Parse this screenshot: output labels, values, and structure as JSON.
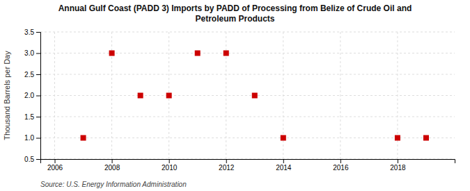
{
  "chart_data": {
    "type": "scatter",
    "title": "Annual Gulf Coast (PADD 3) Imports by PADD of Processing from Belize of Crude Oil and\nPetroleum Products",
    "y_label": "Thousand Barrels per Day",
    "source": "Source: U.S. Energy Information Administration",
    "x": [
      2007,
      2008,
      2009,
      2010,
      2011,
      2012,
      2013,
      2014,
      2018,
      2019
    ],
    "values": [
      1.0,
      3.0,
      2.0,
      2.0,
      3.0,
      3.0,
      2.0,
      1.0,
      1.0,
      1.0
    ],
    "color": "#cc0000",
    "marker": "square",
    "xlim": [
      2005.5,
      2020.0
    ],
    "ylim": [
      0.5,
      3.5
    ],
    "xticks": [
      2006,
      2008,
      2010,
      2012,
      2014,
      2016,
      2018
    ],
    "yticks": [
      0.5,
      {
        "value": 1.0,
        "label": "1.0"
      },
      1.5,
      {
        "value": 2.0,
        "label": "2.0"
      },
      2.5,
      {
        "value": 3.0,
        "label": "3.0"
      },
      3.5
    ],
    "grid": true
  }
}
